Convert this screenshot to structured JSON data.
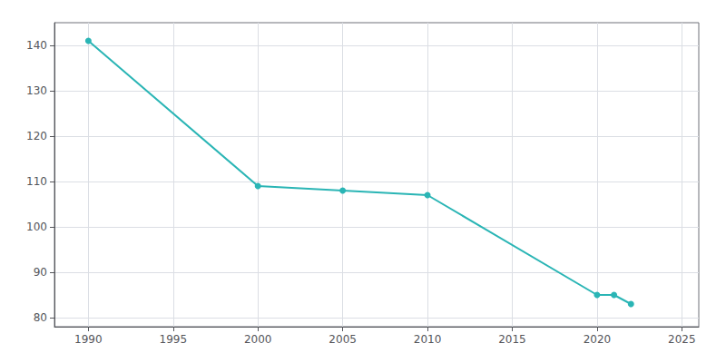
{
  "chart_data": {
    "type": "line",
    "x": [
      1990,
      2000,
      2005,
      2010,
      2020,
      2021,
      2022
    ],
    "values": [
      141,
      109,
      108,
      107,
      85,
      85,
      83
    ],
    "color": "#2ab5b5",
    "marker": "circle",
    "xlim": [
      1988,
      2026
    ],
    "xticks": [
      1990,
      1995,
      2000,
      2005,
      2010,
      2015,
      2020,
      2025
    ],
    "ylim": [
      78,
      145
    ],
    "yticks": [
      80,
      90,
      100,
      110,
      120,
      130,
      140
    ],
    "grid": true
  }
}
